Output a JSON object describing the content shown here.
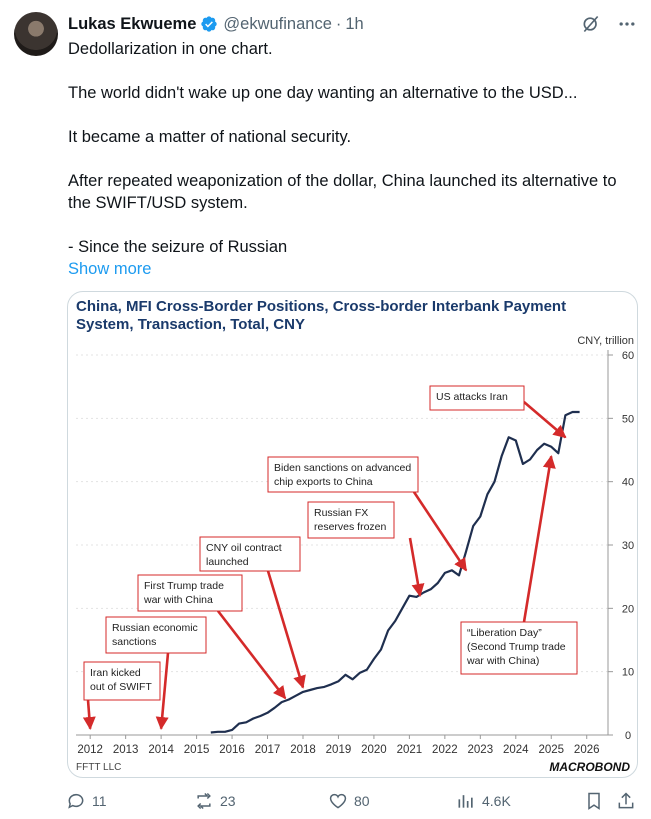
{
  "author": {
    "name": "Lukas Ekwueme",
    "handle": "@ekwufinance",
    "separator": "·",
    "time": "1h"
  },
  "tweet": {
    "lines": [
      "Dedollarization in one chart.",
      "The world didn't wake up one day wanting an alternative to the USD...",
      "It became a matter of national security.",
      "After repeated weaponization of the dollar, China launched its alternative to the SWIFT/USD system.",
      "- Since the seizure of Russian"
    ],
    "show_more": "Show more"
  },
  "chart_data": {
    "type": "line",
    "title": "China, MFI Cross-Border Positions, Cross-border Interbank Payment System, Transaction, Total, CNY",
    "ylabel": "CNY, trillion",
    "ylim": [
      0,
      60
    ],
    "yticks": [
      0,
      10,
      20,
      30,
      40,
      50,
      60
    ],
    "xticks": [
      "2012",
      "2013",
      "2014",
      "2015",
      "2016",
      "2017",
      "2018",
      "2019",
      "2020",
      "2021",
      "2022",
      "2023",
      "2024",
      "2025",
      "2026"
    ],
    "xlim": [
      2011.6,
      2026.6
    ],
    "grid": true,
    "series": [
      {
        "color": "#1f2f4f",
        "x": [
          2015.4,
          2015.6,
          2015.8,
          2016.0,
          2016.2,
          2016.4,
          2016.6,
          2016.8,
          2017.0,
          2017.2,
          2017.4,
          2017.6,
          2017.8,
          2018.0,
          2018.2,
          2018.4,
          2018.6,
          2018.8,
          2019.0,
          2019.2,
          2019.4,
          2019.6,
          2019.8,
          2020.0,
          2020.2,
          2020.4,
          2020.6,
          2020.8,
          2021.0,
          2021.2,
          2021.4,
          2021.6,
          2021.8,
          2022.0,
          2022.2,
          2022.4,
          2022.6,
          2022.8,
          2023.0,
          2023.2,
          2023.4,
          2023.6,
          2023.8,
          2024.0,
          2024.2,
          2024.4,
          2024.6,
          2024.8,
          2025.0,
          2025.2,
          2025.4,
          2025.6,
          2025.8
        ],
        "y": [
          0.4,
          0.5,
          0.5,
          0.8,
          1.8,
          2.0,
          2.6,
          3.0,
          3.5,
          4.3,
          5.2,
          5.6,
          6.2,
          6.8,
          7.1,
          7.4,
          7.6,
          8.0,
          8.5,
          9.5,
          8.8,
          9.8,
          10.3,
          12.0,
          13.5,
          16.5,
          18.0,
          20.0,
          22.0,
          21.8,
          22.5,
          23.0,
          24.0,
          25.6,
          26.0,
          25.2,
          29.0,
          33.0,
          34.5,
          38.0,
          40.0,
          44.0,
          47.0,
          46.5,
          42.8,
          43.5,
          45.0,
          46.0,
          45.5,
          44.5,
          50.5,
          51.0,
          51.0
        ]
      }
    ],
    "annotations": [
      {
        "text": "Iran kicked\nout of SWIFT",
        "target_x": 2012.0,
        "target_y": 1.0
      },
      {
        "text": "Russian economic\nsanctions",
        "target_x": 2014.0,
        "target_y": 1.0
      },
      {
        "text": "First Trump trade\nwar with China",
        "target_x": 2017.5,
        "target_y": 5.8
      },
      {
        "text": "CNY oil contract\nlaunched",
        "target_x": 2018.0,
        "target_y": 7.5
      },
      {
        "text": "Russian FX\nreserves frozen",
        "target_x": 2021.3,
        "target_y": 22.0
      },
      {
        "text": "Biden sanctions on advanced\nchip exports to China",
        "target_x": 2022.6,
        "target_y": 26.0
      },
      {
        "text": "US attacks Iran",
        "target_x": 2025.4,
        "target_y": 47.0
      },
      {
        "text": "“Liberation Day”\n(Second Trump trade\nwar with China)",
        "target_x": 2025.0,
        "target_y": 44.0
      }
    ],
    "source": "FFTT LLC",
    "brand": "MACROBOND"
  },
  "actions": {
    "reply_count": "11",
    "repost_count": "23",
    "like_count": "80",
    "view_count": "4.6K"
  },
  "colors": {
    "accent": "#1d9bf0",
    "annotation": "#d42a2a",
    "series": "#1f2f4f",
    "chart_title": "#1a3a6b",
    "muted": "#536471"
  },
  "icons": [
    "verified-badge-icon",
    "grok-icon",
    "more-icon",
    "reply-icon",
    "repost-icon",
    "like-icon",
    "views-icon",
    "bookmark-icon",
    "share-icon"
  ]
}
